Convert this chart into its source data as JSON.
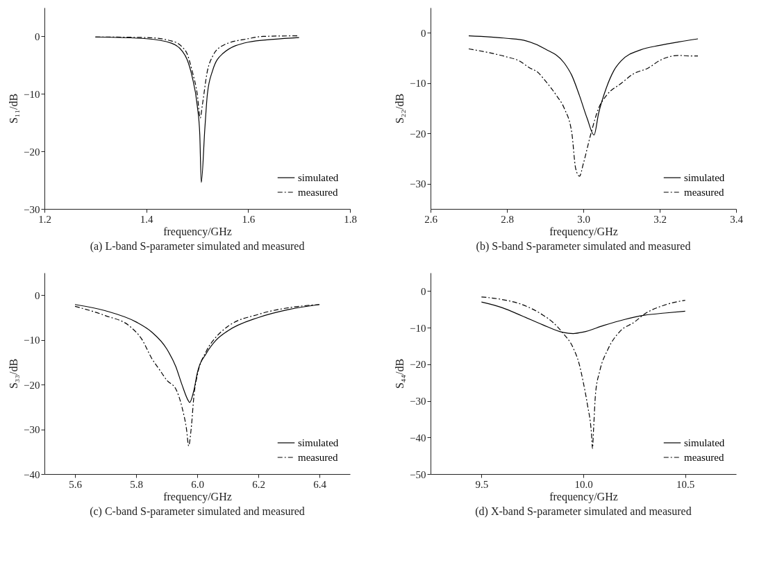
{
  "chart_data": [
    {
      "type": "line",
      "title": "(a) L-band S-parameter simulated and measured",
      "xlabel": "frequency/GHz",
      "ylabel": "S₁₁/dB",
      "xlim": [
        1.2,
        1.8
      ],
      "xticks": [
        1.2,
        1.4,
        1.6,
        1.8
      ],
      "ylim": [
        -30,
        5
      ],
      "yticks": [
        -30,
        -20,
        -10,
        0
      ],
      "grid": false,
      "legend": "bottom right",
      "series": [
        {
          "name": "simulated",
          "color": "#000000",
          "line_style": "solid",
          "x": [
            1.3,
            1.4,
            1.45,
            1.47,
            1.48,
            1.49,
            1.5,
            1.505,
            1.508,
            1.515,
            1.52,
            1.53,
            1.55,
            1.6,
            1.65,
            1.7
          ],
          "values": [
            -0.1,
            -0.4,
            -1.2,
            -2.5,
            -4,
            -7,
            -12,
            -17,
            -25.4,
            -16,
            -10,
            -6,
            -3,
            -1,
            -0.5,
            -0.2
          ]
        },
        {
          "name": "measured",
          "color": "#000000",
          "line_style": "dashed",
          "x": [
            1.3,
            1.4,
            1.45,
            1.47,
            1.48,
            1.49,
            1.5,
            1.506,
            1.51,
            1.52,
            1.53,
            1.55,
            1.6,
            1.63,
            1.7
          ],
          "values": [
            -0.1,
            -0.2,
            -0.8,
            -1.8,
            -3,
            -6,
            -10,
            -14.2,
            -12,
            -6,
            -3.5,
            -1.6,
            -0.4,
            0,
            0.1
          ]
        }
      ]
    },
    {
      "type": "line",
      "title": "(b) S-band S-parameter simulated and measured",
      "xlabel": "frequency/GHz",
      "ylabel": "S₂₂/dB",
      "xlim": [
        2.6,
        3.4
      ],
      "xticks": [
        {
          "value": 2.6,
          "label": "2.6"
        },
        {
          "value": 2.8,
          "label": "2.8"
        },
        {
          "value": 3,
          "label": "3.0"
        },
        {
          "value": 3.2,
          "label": "3.2"
        },
        {
          "value": 3.4,
          "label": "3.4"
        }
      ],
      "ylim": [
        -35,
        5
      ],
      "yticks": [
        -30,
        -20,
        -10,
        0
      ],
      "grid": false,
      "legend": "bottom right",
      "series": [
        {
          "name": "simulated",
          "color": "#000000",
          "line_style": "solid",
          "x": [
            2.7,
            2.8,
            2.85,
            2.9,
            2.95,
            2.97,
            2.99,
            3.01,
            3.028,
            3.04,
            3.06,
            3.08,
            3.1,
            3.15,
            3.2,
            3.25,
            3.3
          ],
          "values": [
            -0.6,
            -1.1,
            -1.6,
            -3.2,
            -6,
            -8.5,
            -12.5,
            -17,
            -20.3,
            -16,
            -11,
            -7.5,
            -5.5,
            -3.4,
            -2.5,
            -1.8,
            -1.2
          ]
        },
        {
          "name": "measured",
          "color": "#000000",
          "line_style": "dashed",
          "x": [
            2.7,
            2.75,
            2.8,
            2.83,
            2.86,
            2.88,
            2.9,
            2.93,
            2.95,
            2.97,
            2.98,
            2.99,
            3.0,
            3.02,
            3.04,
            3.06,
            3.1,
            3.13,
            3.17,
            3.2,
            3.25,
            3.28,
            3.3
          ],
          "values": [
            -3.2,
            -3.9,
            -4.8,
            -5.5,
            -7,
            -7.8,
            -9.5,
            -12.5,
            -15,
            -20,
            -27,
            -28.5,
            -26,
            -20,
            -15,
            -12.5,
            -10,
            -8.2,
            -7,
            -5.5,
            -4.5,
            -4.6,
            -4.6
          ]
        }
      ]
    },
    {
      "type": "line",
      "title": "(c) C-band S-parameter simulated and measured",
      "xlabel": "frequency/GHz",
      "ylabel": "S₃₃/dB",
      "xlim": [
        5.5,
        6.5
      ],
      "xticks": [
        5.6,
        5.8,
        {
          "value": 6,
          "label": "6.0"
        },
        6.2,
        6.4
      ],
      "ylim": [
        -40,
        5
      ],
      "yticks": [
        -40,
        -30,
        -20,
        -10,
        0
      ],
      "grid": false,
      "legend": "bottom right",
      "series": [
        {
          "name": "simulated",
          "color": "#000000",
          "line_style": "solid",
          "x": [
            5.6,
            5.7,
            5.8,
            5.85,
            5.9,
            5.93,
            5.95,
            5.97,
            5.975,
            5.99,
            6.0,
            6.03,
            6.06,
            6.1,
            6.2,
            6.3,
            6.4
          ],
          "values": [
            -2.1,
            -3.5,
            -6,
            -8.2,
            -12,
            -16,
            -20,
            -23.5,
            -24,
            -21,
            -17.5,
            -13,
            -10.2,
            -8,
            -5,
            -3.2,
            -2.1
          ]
        },
        {
          "name": "measured",
          "color": "#000000",
          "line_style": "dashed",
          "x": [
            5.6,
            5.7,
            5.78,
            5.82,
            5.85,
            5.88,
            5.9,
            5.93,
            5.95,
            5.965,
            5.972,
            5.98,
            5.99,
            6.0,
            6.03,
            6.06,
            6.1,
            6.2,
            6.3,
            6.4
          ],
          "values": [
            -2.5,
            -4.6,
            -7,
            -10,
            -14,
            -17,
            -19,
            -21,
            -25,
            -30,
            -33.7,
            -30,
            -22,
            -18,
            -12.5,
            -9.5,
            -7,
            -4.3,
            -2.8,
            -2.1
          ]
        }
      ]
    },
    {
      "type": "line",
      "title": "(d) X-band S-parameter simulated and measured",
      "xlabel": "frequency/GHz",
      "ylabel": "S₄₄/dB",
      "xlim": [
        9.25,
        10.75
      ],
      "xticks": [
        9.5,
        {
          "value": 10,
          "label": "10.0"
        },
        10.5
      ],
      "ylim": [
        -50,
        5
      ],
      "yticks": [
        -50,
        -40,
        -30,
        -20,
        -10,
        0
      ],
      "grid": false,
      "legend": "bottom right",
      "series": [
        {
          "name": "simulated",
          "color": "#000000",
          "line_style": "solid",
          "x": [
            9.5,
            9.6,
            9.7,
            9.8,
            9.9,
            9.95,
            10.0,
            10.1,
            10.2,
            10.3,
            10.4,
            10.5
          ],
          "values": [
            -3,
            -4.5,
            -6.8,
            -9.2,
            -11.3,
            -11.6,
            -11.2,
            -9.4,
            -7.8,
            -6.6,
            -6,
            -5.5
          ]
        },
        {
          "name": "measured",
          "color": "#000000",
          "line_style": "dashed",
          "x": [
            9.5,
            9.6,
            9.7,
            9.8,
            9.85,
            9.9,
            9.95,
            9.98,
            10.0,
            10.02,
            10.04,
            10.045,
            10.05,
            10.06,
            10.08,
            10.12,
            10.18,
            10.25,
            10.3,
            10.4,
            10.5
          ],
          "values": [
            -1.6,
            -2.3,
            -3.7,
            -6.5,
            -8.5,
            -11.5,
            -15.5,
            -20,
            -25,
            -31,
            -39,
            -43,
            -38,
            -28,
            -22,
            -16,
            -11,
            -8.5,
            -6.3,
            -3.8,
            -2.5
          ]
        }
      ]
    }
  ]
}
